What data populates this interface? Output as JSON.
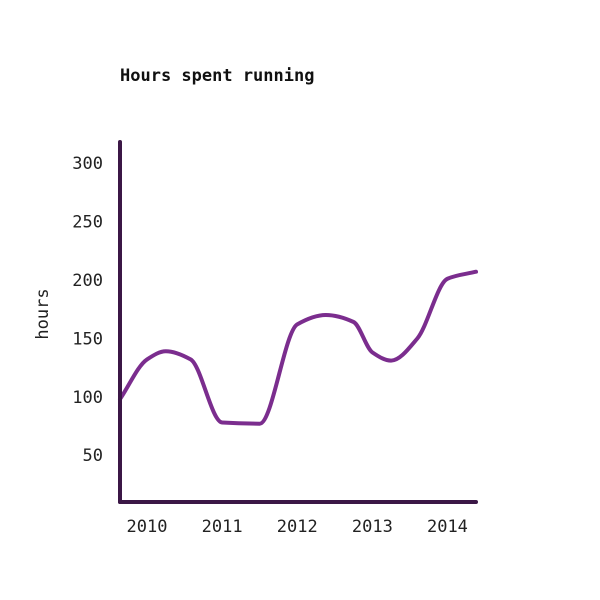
{
  "chart_data": {
    "type": "line",
    "title": "Hours spent running",
    "xlabel": "",
    "ylabel": "hours",
    "x": [
      2009.64,
      2010.0,
      2010.25,
      2010.58,
      2011.0,
      2011.5,
      2012.0,
      2012.38,
      2012.75,
      2013.0,
      2013.25,
      2013.6,
      2014.0,
      2014.38
    ],
    "series": [
      {
        "values": [
          98,
          132,
          139,
          132,
          78,
          77,
          162,
          170,
          164,
          138,
          131,
          150,
          201,
          207
        ]
      }
    ],
    "x_ticks": [
      "2010",
      "2011",
      "2012",
      "2013",
      "2014"
    ],
    "x_tick_values": [
      2010,
      2011,
      2012,
      2013,
      2014
    ],
    "y_ticks": [
      50,
      100,
      150,
      200,
      250,
      300
    ],
    "xlim": [
      2009.64,
      2014.38
    ],
    "ylim": [
      10,
      318
    ],
    "grid": false,
    "colors": {
      "line": "#7b2d8e",
      "axis": "#3b1746",
      "text": "#222222"
    }
  }
}
